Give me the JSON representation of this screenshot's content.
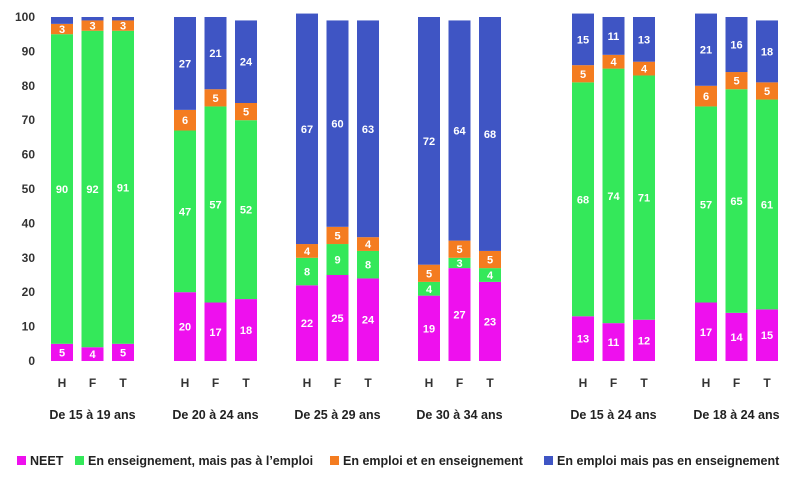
{
  "chart_data": {
    "type": "bar",
    "stacked": true,
    "ylim": [
      0,
      100
    ],
    "yticks": [
      0,
      10,
      20,
      30,
      40,
      50,
      60,
      70,
      80,
      90,
      100
    ],
    "grid": false,
    "legend_position": "bottom",
    "bar_categories": [
      "H",
      "F",
      "T"
    ],
    "groups": [
      {
        "label": "De 15 à 19 ans",
        "bars": [
          {
            "category": "H",
            "values": [
              5,
              90,
              3,
              2
            ]
          },
          {
            "category": "F",
            "values": [
              4,
              92,
              3,
              1
            ]
          },
          {
            "category": "T",
            "values": [
              5,
              91,
              3,
              1
            ]
          }
        ]
      },
      {
        "label": "De 20 à 24 ans",
        "bars": [
          {
            "category": "H",
            "values": [
              20,
              47,
              6,
              27
            ]
          },
          {
            "category": "F",
            "values": [
              17,
              57,
              5,
              21
            ]
          },
          {
            "category": "T",
            "values": [
              18,
              52,
              5,
              24
            ]
          }
        ]
      },
      {
        "label": "De 25 à 29 ans",
        "bars": [
          {
            "category": "H",
            "values": [
              22,
              8,
              4,
              67
            ]
          },
          {
            "category": "F",
            "values": [
              25,
              9,
              5,
              60
            ]
          },
          {
            "category": "T",
            "values": [
              24,
              8,
              4,
              63
            ]
          }
        ]
      },
      {
        "label": "De 30 à 34 ans",
        "bars": [
          {
            "category": "H",
            "values": [
              19,
              4,
              5,
              72
            ]
          },
          {
            "category": "F",
            "values": [
              27,
              3,
              5,
              64
            ]
          },
          {
            "category": "T",
            "values": [
              23,
              4,
              5,
              68
            ]
          }
        ]
      },
      {
        "label": "De 15 à 24 ans",
        "bars": [
          {
            "category": "H",
            "values": [
              13,
              68,
              5,
              15
            ]
          },
          {
            "category": "F",
            "values": [
              11,
              74,
              4,
              11
            ]
          },
          {
            "category": "T",
            "values": [
              12,
              71,
              4,
              13
            ]
          }
        ]
      },
      {
        "label": "De 18 à 24 ans",
        "bars": [
          {
            "category": "H",
            "values": [
              17,
              57,
              6,
              21
            ]
          },
          {
            "category": "F",
            "values": [
              14,
              65,
              5,
              16
            ]
          },
          {
            "category": "T",
            "values": [
              15,
              61,
              5,
              18
            ]
          }
        ]
      }
    ],
    "series": [
      {
        "name": "NEET",
        "color": "#ee10ee"
      },
      {
        "name": "En enseignement, mais pas à l’emploi",
        "color": "#34e85a"
      },
      {
        "name": "En emploi et en enseignement",
        "color": "#f47c20"
      },
      {
        "name": "En emploi mais pas en enseignement",
        "color": "#3f55c4"
      }
    ]
  }
}
